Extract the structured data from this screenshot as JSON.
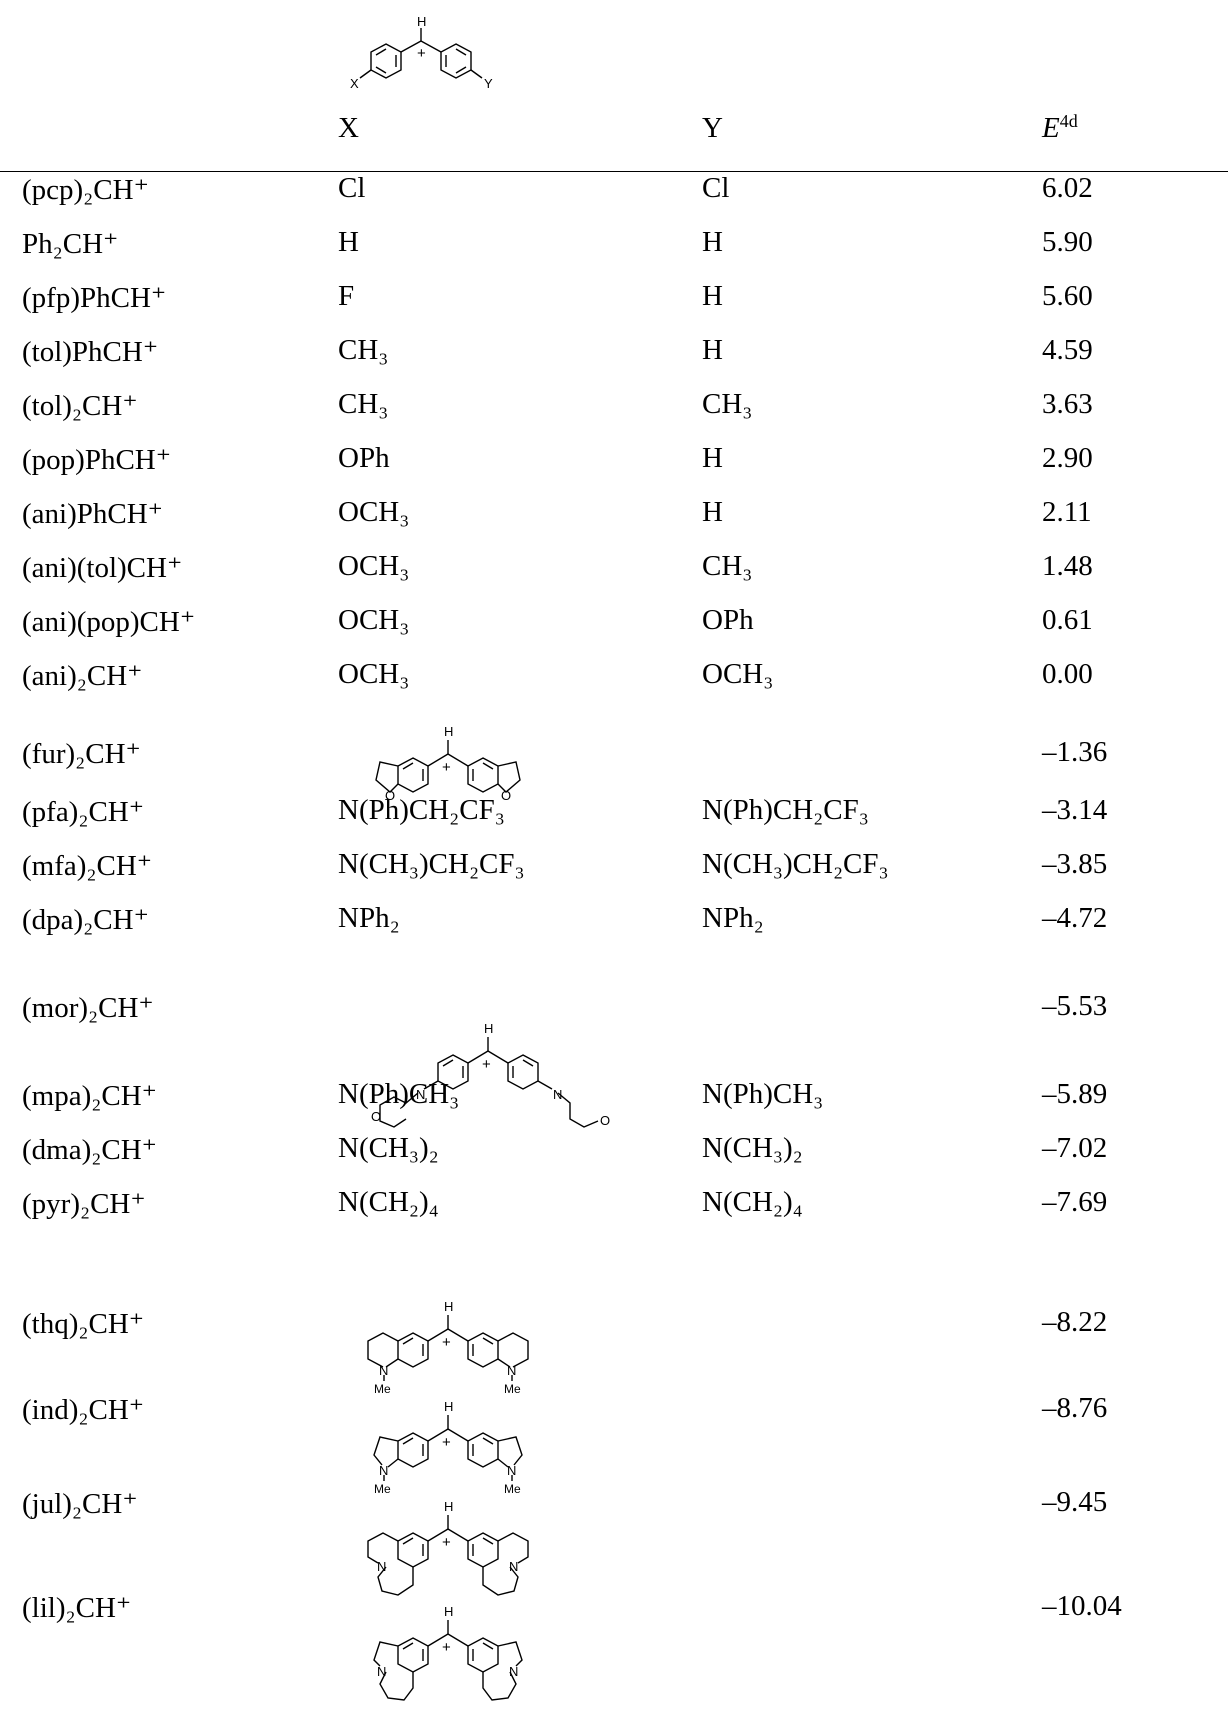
{
  "header": {
    "col_x": "X",
    "col_y": "Y",
    "col_e_main": "E",
    "col_e_sup": "4d"
  },
  "structure_labels": {
    "h": "H",
    "plus": "+",
    "x": "X",
    "y": "Y",
    "o": "O",
    "n": "N",
    "me": "Me"
  },
  "rows": [
    {
      "cation": "(pcp)₂CH⁺",
      "x": "Cl",
      "y": "Cl",
      "e": "6.02"
    },
    {
      "cation": "Ph₂CH⁺",
      "x": "H",
      "y": "H",
      "e": "5.90"
    },
    {
      "cation": "(pfp)PhCH⁺",
      "x": "F",
      "y": "H",
      "e": "5.60"
    },
    {
      "cation": "(tol)PhCH⁺",
      "x": "CH₃",
      "y": "H",
      "e": "4.59"
    },
    {
      "cation": "(tol)₂CH⁺",
      "x": "CH₃",
      "y": "CH₃",
      "e": "3.63"
    },
    {
      "cation": "(pop)PhCH⁺",
      "x": "OPh",
      "y": "H",
      "e": "2.90"
    },
    {
      "cation": "(ani)PhCH⁺",
      "x": "OCH₃",
      "y": "H",
      "e": "2.11"
    },
    {
      "cation": "(ani)(tol)CH⁺",
      "x": "OCH₃",
      "y": "CH₃",
      "e": "1.48"
    },
    {
      "cation": "(ani)(pop)CH⁺",
      "x": "OCH₃",
      "y": "OPh",
      "e": "0.61"
    },
    {
      "cation": "(ani)₂CH⁺",
      "x": "OCH₃",
      "y": "OCH₃",
      "e": "0.00"
    },
    {
      "cation": "(fur)₂CH⁺",
      "x": "",
      "y": "",
      "e": "–1.36"
    },
    {
      "cation": "(pfa)₂CH⁺",
      "x": "N(Ph)CH₂CF₃",
      "y": "N(Ph)CH₂CF₃",
      "e": "–3.14"
    },
    {
      "cation": "(mfa)₂CH⁺",
      "x": "N(CH₃)CH₂CF₃",
      "y": "N(CH₃)CH₂CF₃",
      "e": "–3.85"
    },
    {
      "cation": "(dpa)₂CH⁺",
      "x": "NPh₂",
      "y": "NPh₂",
      "e": "–4.72"
    },
    {
      "cation": "(mor)₂CH⁺",
      "x": "",
      "y": "",
      "e": "–5.53"
    },
    {
      "cation": "(mpa)₂CH⁺",
      "x": "N(Ph)CH₃",
      "y": "N(Ph)CH₃",
      "e": "–5.89"
    },
    {
      "cation": "(dma)₂CH⁺",
      "x": "N(CH₃)₂",
      "y": "N(CH₃)₂",
      "e": "–7.02"
    },
    {
      "cation": "(pyr)₂CH⁺",
      "x": "N(CH₂)₄",
      "y": "N(CH₂)₄",
      "e": "–7.69"
    },
    {
      "cation": "(thq)₂CH⁺",
      "x": "",
      "y": "",
      "e": "–8.22"
    },
    {
      "cation": "(ind)₂CH⁺",
      "x": "",
      "y": "",
      "e": "–8.76"
    },
    {
      "cation": "(jul)₂CH⁺",
      "x": "",
      "y": "",
      "e": "–9.45"
    },
    {
      "cation": "(lil)₂CH⁺",
      "x": "",
      "y": "",
      "e": "–10.04"
    }
  ]
}
